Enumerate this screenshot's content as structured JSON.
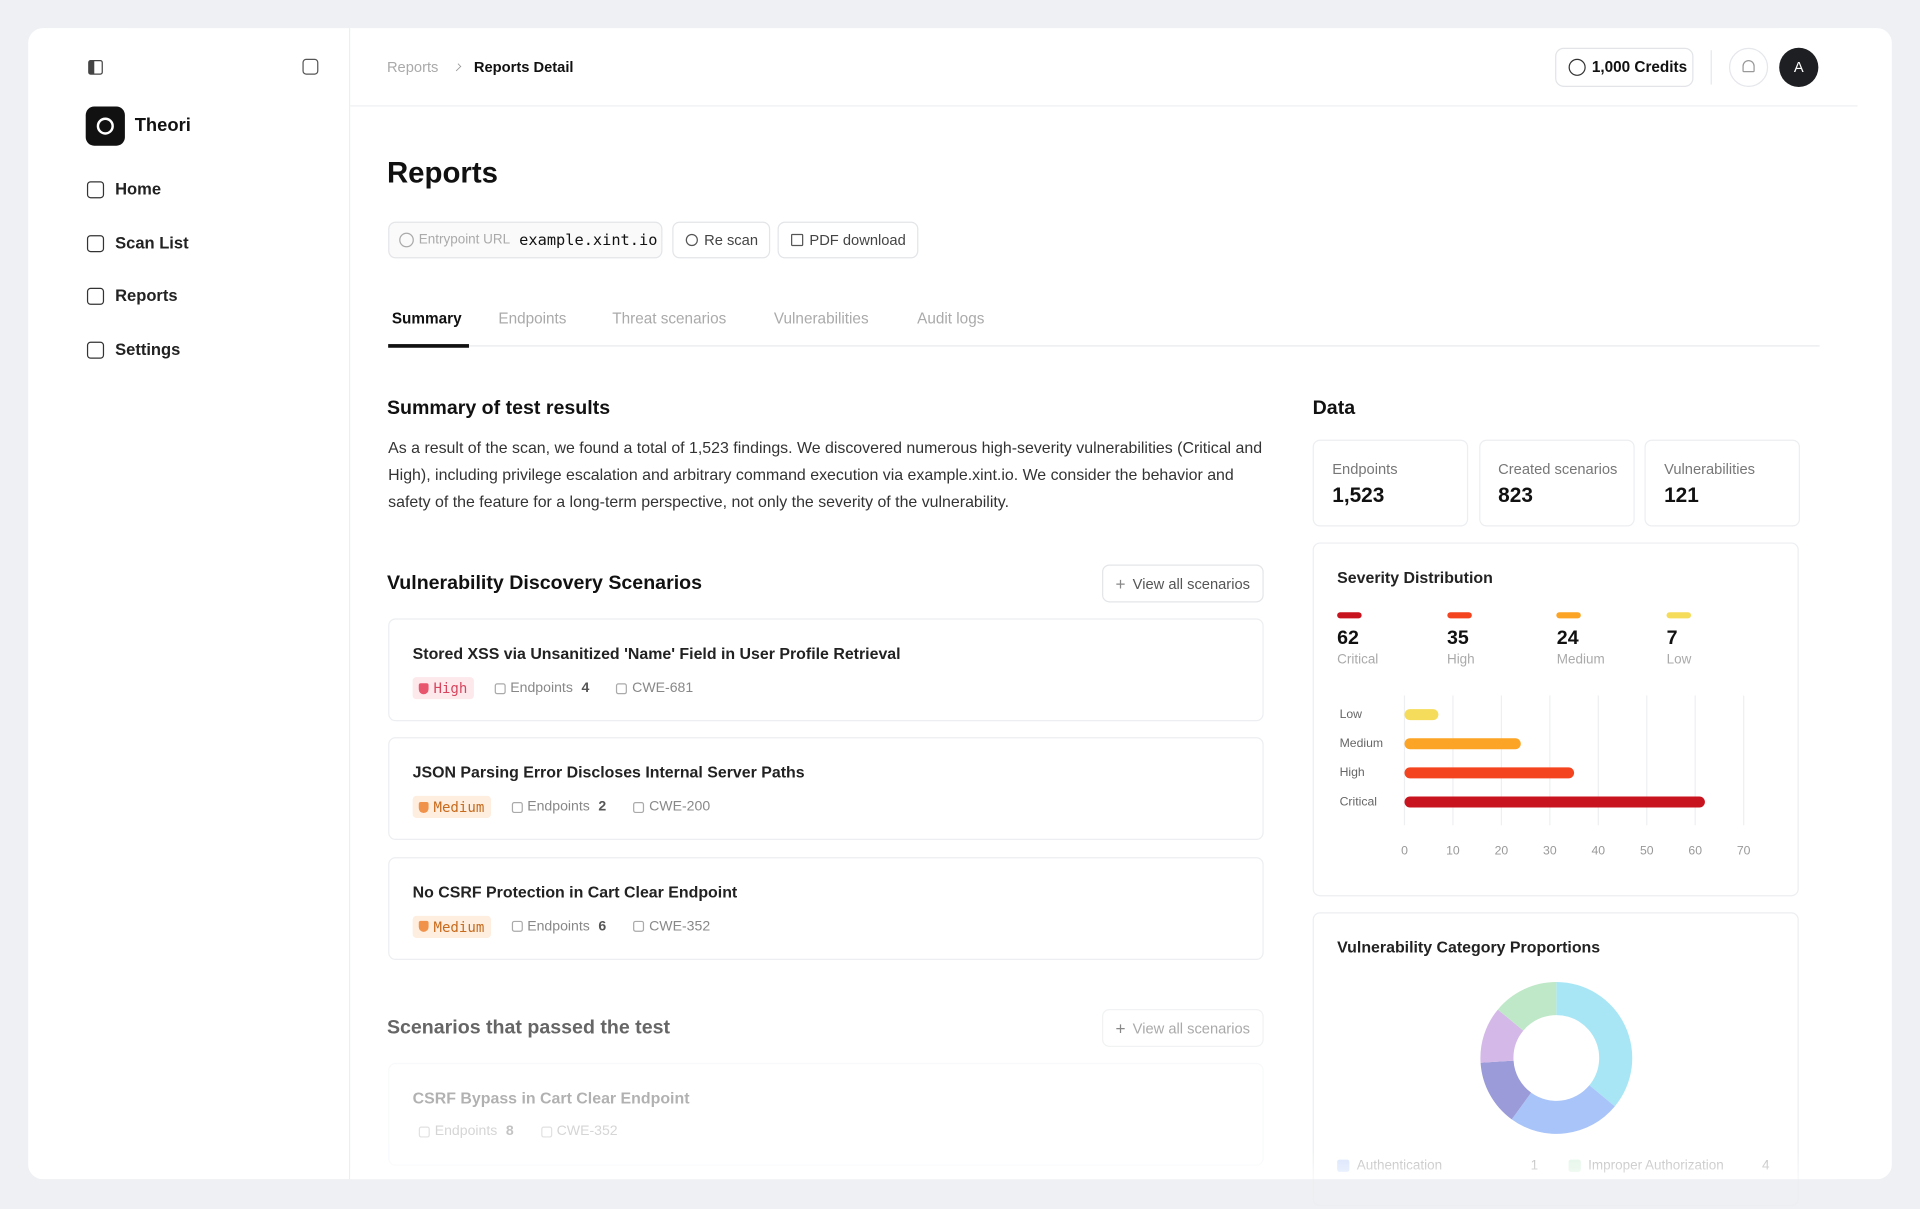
{
  "sidebar": {
    "brand": "Theori",
    "nav": [
      "Home",
      "Scan List",
      "Reports",
      "Settings"
    ]
  },
  "topbar": {
    "breadcrumb": [
      "Reports",
      "Reports Detail"
    ],
    "credits": "1,000 Credits",
    "avatar": "A"
  },
  "page": {
    "title": "Reports",
    "entrypoint_label": "Entrypoint URL",
    "entrypoint_url": "example.xint.io",
    "actions": [
      "Re scan",
      "PDF download"
    ],
    "tabs": [
      "Summary",
      "Endpoints",
      "Threat scenarios",
      "Vulnerabilities",
      "Audit logs"
    ]
  },
  "summary": {
    "heading": "Summary of test results",
    "text": "As a result of the scan, we found a total of 1,523 findings. We discovered numerous high-severity vulnerabilities (Critical and High), including privilege escalation and arbitrary command execution via example.xint.io. We consider the behavior and safety of the feature for a long-term perspective, not only the severity of the vulnerability."
  },
  "scenarios": {
    "heading": "Vulnerability Discovery Scenarios",
    "button": "View all scenarios",
    "items": [
      {
        "title": "Stored XSS via Unsanitized 'Name' Field in User Profile Retrieval",
        "severity": "High",
        "endpoints_label": "Endpoints",
        "endpoints": 4,
        "cwe": "CWE-681"
      },
      {
        "title": "JSON Parsing Error Discloses Internal Server Paths",
        "severity": "Medium",
        "endpoints_label": "Endpoints",
        "endpoints": 2,
        "cwe": "CWE-200"
      },
      {
        "title": "No CSRF Protection in Cart Clear Endpoint",
        "severity": "Medium",
        "endpoints_label": "Endpoints",
        "endpoints": 6,
        "cwe": "CWE-352"
      }
    ]
  },
  "passed": {
    "heading": "Scenarios that passed the test",
    "button": "View all scenarios",
    "items": [
      {
        "title": "CSRF Bypass in Cart Clear Endpoint",
        "endpoints_label": "Endpoints",
        "endpoints": 8,
        "cwe": "CWE-352"
      }
    ]
  },
  "data": {
    "heading": "Data",
    "stats": [
      {
        "label": "Endpoints",
        "value": "1,523"
      },
      {
        "label": "Created scenarios",
        "value": "823"
      },
      {
        "label": "Vulnerabilities",
        "value": "121"
      }
    ]
  },
  "severity_chart": {
    "type": "bar",
    "title": "Severity Distribution",
    "categories": [
      "Critical",
      "High",
      "Medium",
      "Low"
    ],
    "values": [
      62,
      35,
      24,
      7
    ],
    "colors": [
      "#c8141e",
      "#f4431f",
      "#fba425",
      "#f5dc5a"
    ],
    "xlim": [
      0,
      70
    ],
    "xticks": [
      0,
      10,
      20,
      30,
      40,
      50,
      60,
      70
    ],
    "grid": true
  },
  "category_chart": {
    "type": "pie",
    "title": "Vulnerability Category Proportions",
    "values": [
      36,
      24,
      14,
      12,
      14
    ],
    "colors": [
      "#a8e6f5",
      "#a9c4f8",
      "#9a9bd8",
      "#d4b8e8",
      "#bfe8c8"
    ],
    "legend": [
      {
        "name": "Authentication",
        "count": 1,
        "color": "#a9c4f8"
      },
      {
        "name": "Improper Authorization",
        "count": 4,
        "color": "#bfe8c8"
      }
    ]
  }
}
